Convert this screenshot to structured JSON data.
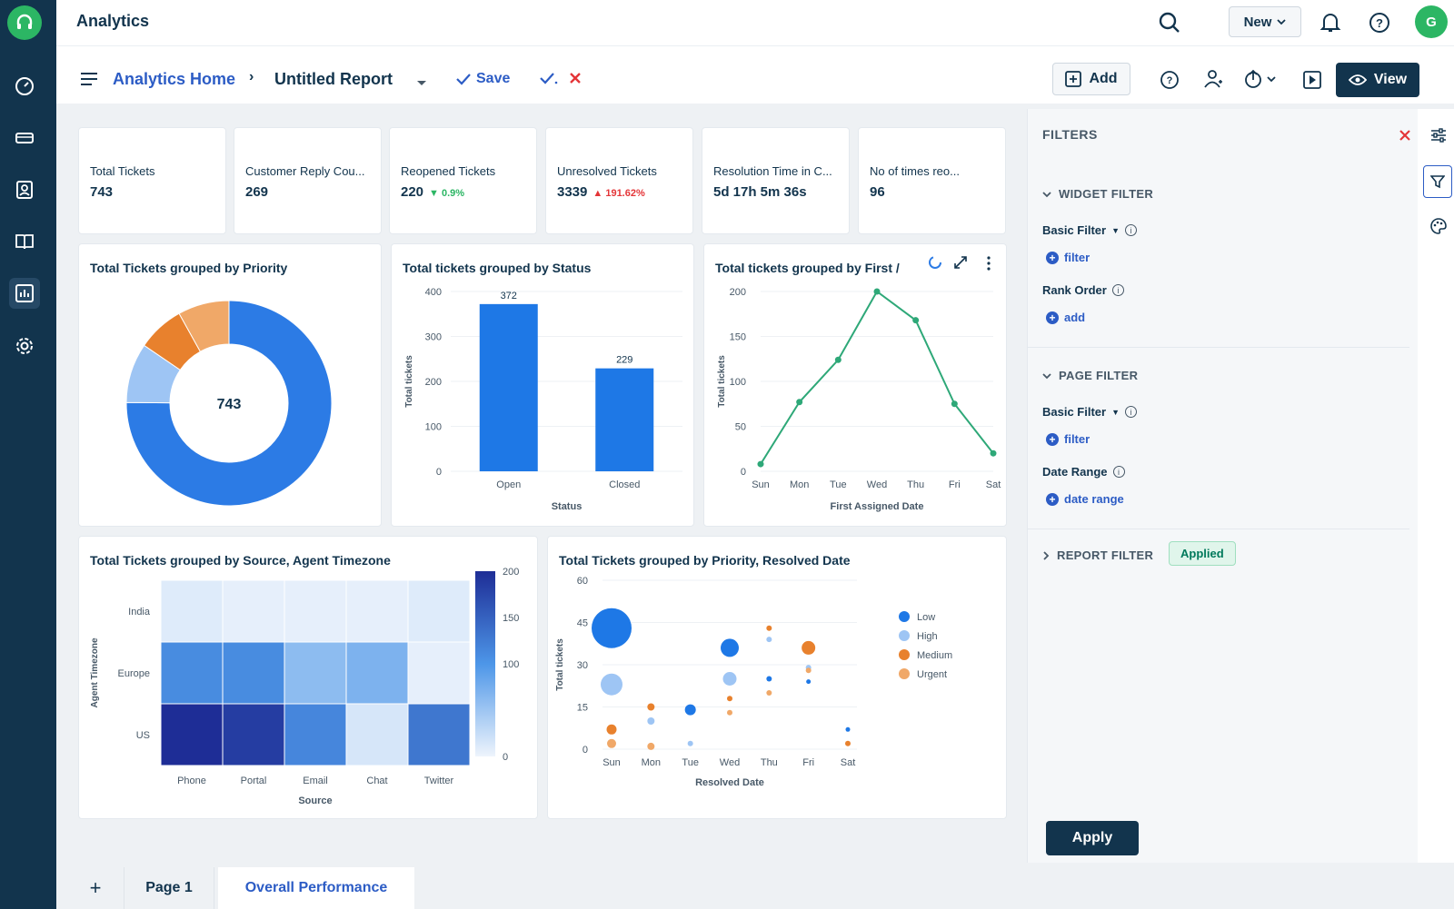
{
  "app": {
    "title": "Analytics",
    "new_label": "New",
    "avatar_initial": "G"
  },
  "toolbar": {
    "breadcrumb_home": "Analytics Home",
    "report_name": "Untitled Report",
    "save_label": "Save",
    "add_label": "Add",
    "view_label": "View"
  },
  "kpis": [
    {
      "label": "Total Tickets",
      "value": "743"
    },
    {
      "label": "Customer Reply Cou...",
      "value": "269"
    },
    {
      "label": "Reopened Tickets",
      "value": "220",
      "delta": "0.9%",
      "delta_dir": "down",
      "delta_color": "#2cb664"
    },
    {
      "label": "Unresolved Tickets",
      "value": "3339",
      "delta": "191.62%",
      "delta_dir": "up",
      "delta_color": "#e43538"
    },
    {
      "label": "Resolution Time in C...",
      "value": "5d 17h 5m 36s"
    },
    {
      "label": "No of times reo...",
      "value": "96"
    }
  ],
  "widgets": {
    "priority_title": "Total Tickets grouped by Priority",
    "status_title": "Total tickets grouped by Status",
    "first_assigned_title": "Total tickets grouped by First /",
    "source_tz_title": "Total Tickets grouped by Source, Agent Timezone",
    "priority_resolved_title": "Total Tickets grouped by Priority, Resolved Date"
  },
  "chart_data": [
    {
      "type": "pie",
      "title": "Total Tickets grouped by Priority",
      "center_label": "743",
      "slices": [
        {
          "color": "#2c7be5",
          "value": 558
        },
        {
          "color": "#9ec5f4",
          "value": 70
        },
        {
          "color": "#e8812d",
          "value": 55
        },
        {
          "color": "#f0a868",
          "value": 60
        }
      ]
    },
    {
      "type": "bar",
      "title": "Total tickets grouped by Status",
      "categories": [
        "Open",
        "Closed"
      ],
      "values": [
        372,
        229
      ],
      "xlabel": "Status",
      "ylabel": "Total tickets",
      "ylim": [
        0,
        400
      ],
      "yticks": [
        "0",
        "100",
        "200",
        "300",
        "400"
      ],
      "color": "#1e78e6"
    },
    {
      "type": "line",
      "title": "Total tickets grouped by First /",
      "categories": [
        "Sun",
        "Mon",
        "Tue",
        "Wed",
        "Thu",
        "Fri",
        "Sat"
      ],
      "values": [
        8,
        77,
        124,
        200,
        168,
        75,
        20
      ],
      "xlabel": "First Assigned Date",
      "ylabel": "Total tickets",
      "ylim": [
        0,
        200
      ],
      "yticks": [
        "0",
        "50",
        "100",
        "150",
        "200"
      ],
      "color": "#2ea878"
    },
    {
      "type": "heatmap",
      "title": "Total Tickets grouped by Source, Agent Timezone",
      "x_categories": [
        "Phone",
        "Portal",
        "Email",
        "Chat",
        "Twitter"
      ],
      "y_categories": [
        "India",
        "Europe",
        "US"
      ],
      "values": [
        [
          10,
          5,
          5,
          5,
          10
        ],
        [
          110,
          110,
          60,
          70,
          5
        ],
        [
          200,
          185,
          115,
          15,
          130
        ]
      ],
      "xlabel": "Source",
      "ylabel": "Agent Timezone",
      "scale_ticks": [
        "200",
        "150",
        "100",
        "0"
      ],
      "scale_max": 200
    },
    {
      "type": "scatter",
      "title": "Total Tickets grouped by Priority, Resolved Date",
      "categories": [
        "Sun",
        "Mon",
        "Tue",
        "Wed",
        "Thu",
        "Fri",
        "Sat"
      ],
      "xlabel": "Resolved Date",
      "ylabel": "Total tickets",
      "ylim": [
        0,
        60
      ],
      "yticks": [
        "0",
        "15",
        "30",
        "45",
        "60"
      ],
      "series": [
        {
          "name": "Low",
          "color": "#1e78e6",
          "points": [
            [
              0,
              43,
              44
            ],
            [
              2,
              14,
              12
            ],
            [
              3,
              36,
              20
            ],
            [
              4,
              25,
              6
            ],
            [
              5,
              24,
              5
            ],
            [
              6,
              7,
              5
            ]
          ]
        },
        {
          "name": "High",
          "color": "#9ec5f4",
          "points": [
            [
              0,
              23,
              24
            ],
            [
              1,
              10,
              8
            ],
            [
              2,
              2,
              6
            ],
            [
              3,
              25,
              15
            ],
            [
              4,
              39,
              6
            ],
            [
              5,
              29,
              6
            ]
          ]
        },
        {
          "name": "Medium",
          "color": "#e8812d",
          "points": [
            [
              0,
              7,
              11
            ],
            [
              1,
              15,
              8
            ],
            [
              3,
              18,
              6
            ],
            [
              4,
              43,
              6
            ],
            [
              5,
              36,
              15
            ],
            [
              6,
              2,
              6
            ]
          ]
        },
        {
          "name": "Urgent",
          "color": "#f0a868",
          "points": [
            [
              0,
              2,
              10
            ],
            [
              1,
              1,
              8
            ],
            [
              3,
              13,
              6
            ],
            [
              4,
              20,
              6
            ],
            [
              5,
              28,
              6
            ]
          ]
        }
      ]
    }
  ],
  "filters": {
    "title": "FILTERS",
    "widget_filter": "WIDGET FILTER",
    "basic_filter": "Basic Filter",
    "filter_link": "filter",
    "rank_order": "Rank Order",
    "add_link": "add",
    "page_filter": "PAGE FILTER",
    "date_range": "Date Range",
    "date_range_link": "date range",
    "report_filter": "REPORT FILTER",
    "applied_badge": "Applied",
    "apply_label": "Apply"
  },
  "tabs": {
    "add": "+",
    "page1": "Page 1",
    "overall": "Overall Performance"
  }
}
